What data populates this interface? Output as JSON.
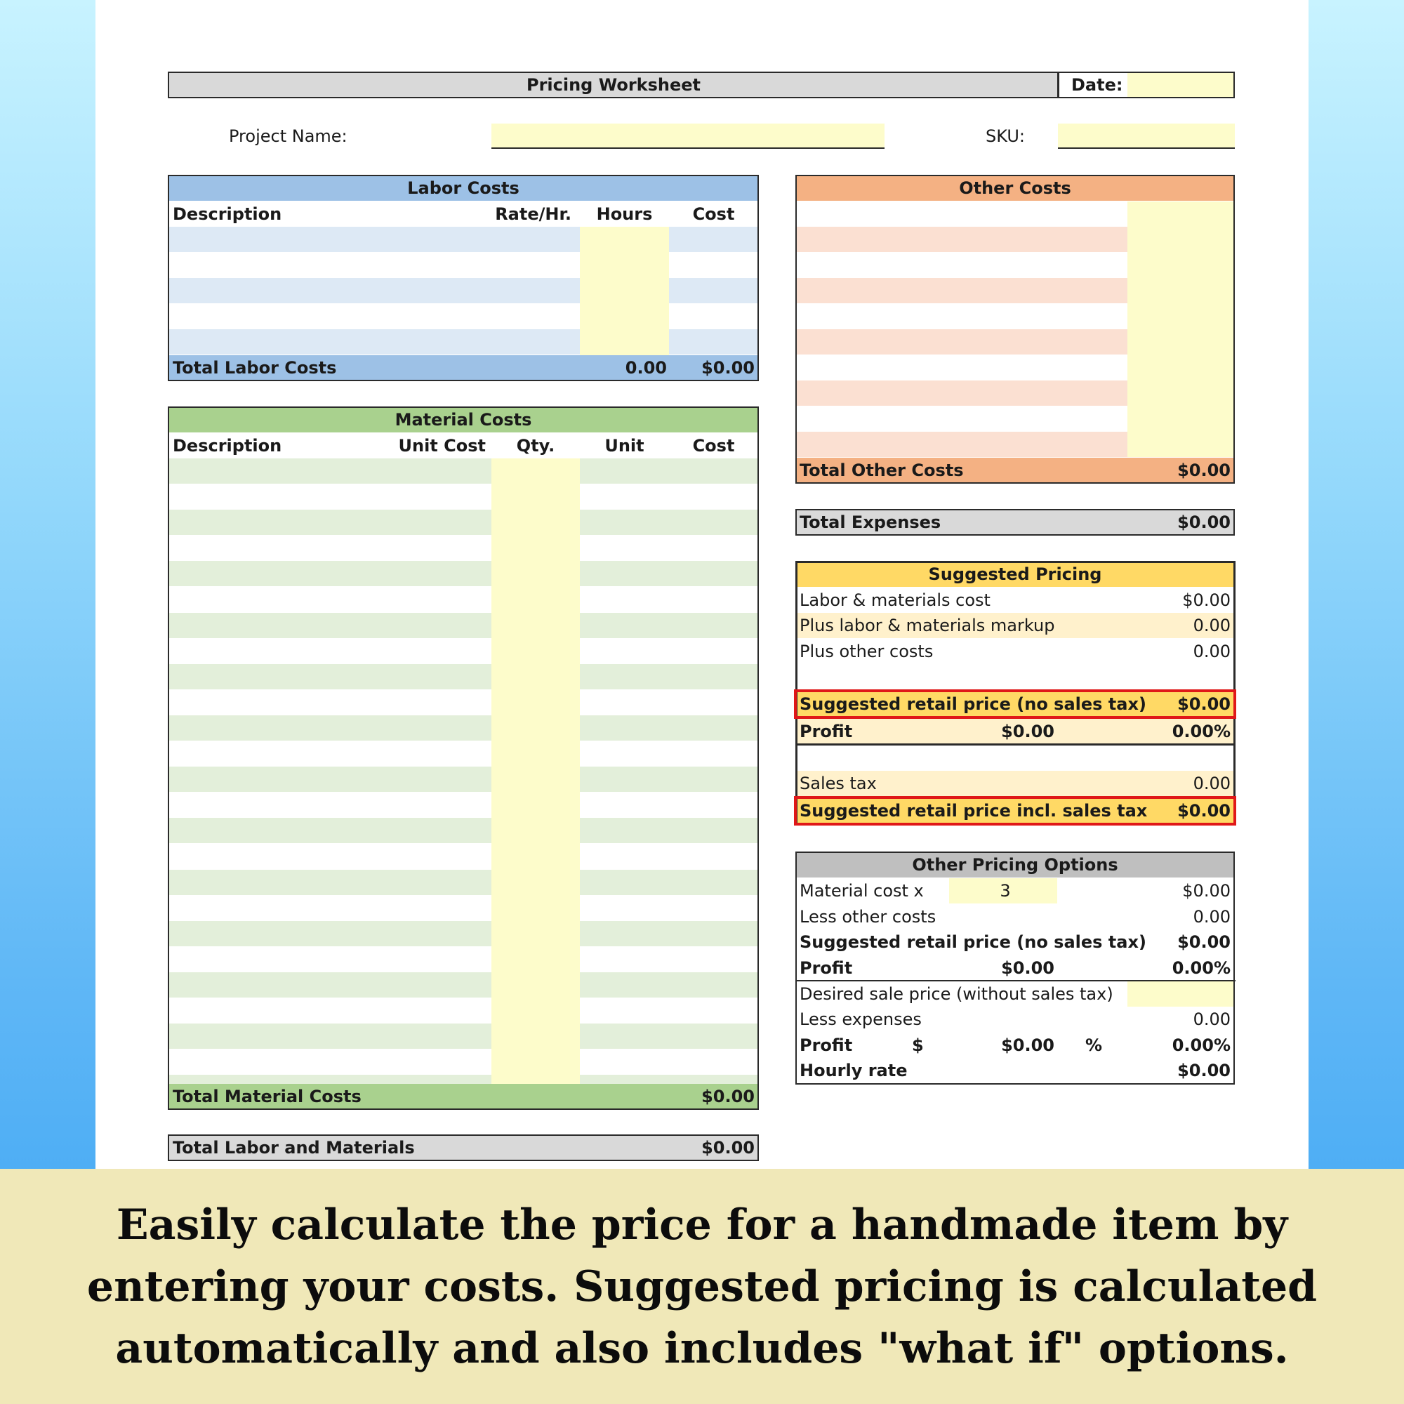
{
  "worksheet": {
    "title": "Pricing Worksheet",
    "date_label": "Date:",
    "project_name_label": "Project Name:",
    "sku_label": "SKU:"
  },
  "labor": {
    "title": "Labor Costs",
    "columns": [
      "Description",
      "Rate/Hr.",
      "Hours",
      "Cost"
    ],
    "total_label": "Total Labor Costs",
    "total_hours": "0.00",
    "total_cost": "$0.00"
  },
  "materials": {
    "title": "Material Costs",
    "columns": [
      "Description",
      "Unit Cost",
      "Qty.",
      "Unit",
      "Cost"
    ],
    "total_label": "Total Material Costs",
    "total_cost": "$0.00"
  },
  "total_labor_materials": {
    "label": "Total Labor and Materials",
    "value": "$0.00"
  },
  "other_costs": {
    "title": "Other Costs",
    "total_label": "Total Other Costs",
    "total_value": "$0.00"
  },
  "total_expenses": {
    "label": "Total Expenses",
    "value": "$0.00"
  },
  "suggested_pricing": {
    "title": "Suggested Pricing",
    "labor_materials_label": "Labor & materials cost",
    "labor_materials_value": "$0.00",
    "markup_label": "Plus labor & materials markup",
    "markup_value": "0.00",
    "other_label": "Plus other costs",
    "other_value": "0.00",
    "retail_label": "Suggested retail price (no sales tax)",
    "retail_value": "$0.00",
    "profit_label": "Profit",
    "profit_amount": "$0.00",
    "profit_pct": "0.00%",
    "tax_label": "Sales tax",
    "tax_value": "0.00",
    "retail_tax_label": "Suggested retail price incl. sales tax",
    "retail_tax_value": "$0.00"
  },
  "other_options": {
    "title": "Other Pricing Options",
    "material_x_label": "Material cost x",
    "material_x_multiplier": "3",
    "material_x_value": "$0.00",
    "less_other_label": "Less other costs",
    "less_other_value": "0.00",
    "retail_label": "Suggested retail price (no sales tax)",
    "retail_value": "$0.00",
    "profit_label": "Profit",
    "profit_amount": "$0.00",
    "profit_pct": "0.00%",
    "desired_label": "Desired sale price (without sales tax)",
    "less_expenses_label": "Less expenses",
    "less_expenses_value": "0.00",
    "profit2_label": "Profit",
    "dollar_sign": "$",
    "profit2_amount": "$0.00",
    "percent_sign": "%",
    "profit2_pct": "0.00%",
    "hourly_label": "Hourly rate",
    "hourly_value": "$0.00"
  },
  "caption": "Easily calculate the price for a handmade item by entering your costs. Suggested pricing is calculated automatically and also includes \"what if\" options.",
  "colors": {
    "labor_header": "#9dc1e6",
    "labor_stripe": "#dde9f5",
    "material_header": "#a9d18e",
    "material_stripe": "#e3efda",
    "other_header": "#f4b183",
    "other_stripe": "#fbe0d2",
    "input_yellow": "#fdfccb",
    "grey_header": "#d9d9d9",
    "suggested_header": "#ffd965",
    "suggested_stripe": "#fff1cc",
    "highlight_red": "#e01818",
    "caption_bg": "#f0e8b8"
  }
}
